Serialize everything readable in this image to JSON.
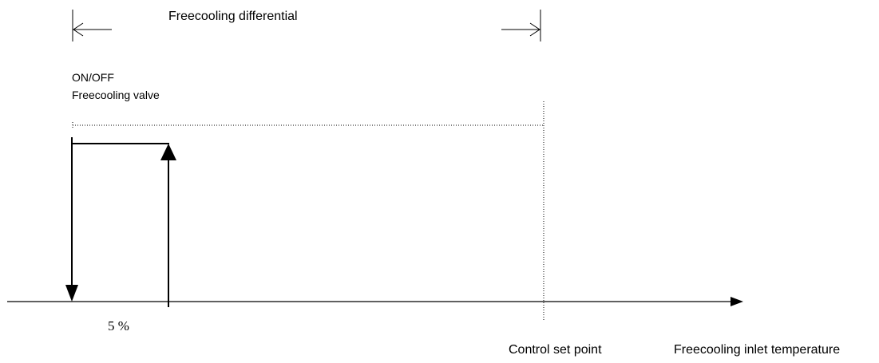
{
  "diagram": {
    "labels": {
      "differential": "Freecooling differential",
      "on_off": "ON/OFF",
      "valve": "Freecooling valve",
      "percent": "5 %",
      "set_point": "Control set point",
      "x_axis": "Freecooling inlet temperature"
    },
    "colors": {
      "ink": "#000000",
      "background": "#ffffff"
    }
  }
}
